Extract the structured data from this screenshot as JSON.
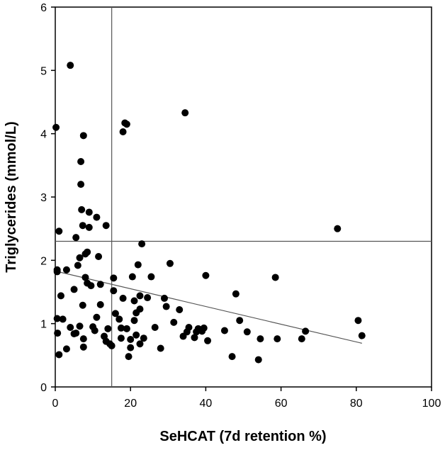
{
  "chart_data": {
    "type": "scatter",
    "title": "",
    "xlabel": "SeHCAT (7d retention %)",
    "ylabel": "Triglycerides (mmol/L)",
    "xlim": [
      0,
      100
    ],
    "ylim": [
      0,
      6
    ],
    "x_ticks": [
      0,
      20,
      40,
      60,
      80,
      100
    ],
    "y_ticks": [
      0,
      1,
      2,
      3,
      4,
      5,
      6
    ],
    "grid": false,
    "colors": {
      "points": "#000000",
      "lines": "#555555",
      "axes": "#000000"
    },
    "reference_lines": [
      {
        "orientation": "vertical",
        "x": 15
      },
      {
        "orientation": "horizontal",
        "y": 2.3
      }
    ],
    "trend_line": {
      "x": [
        0,
        81.5
      ],
      "y": [
        1.83,
        0.69
      ]
    },
    "points": [
      [
        0.2,
        4.1
      ],
      [
        4,
        5.08
      ],
      [
        0.5,
        1.85
      ],
      [
        0.5,
        1.82
      ],
      [
        1,
        2.46
      ],
      [
        0.5,
        1.08
      ],
      [
        0.6,
        0.85
      ],
      [
        1,
        0.51
      ],
      [
        2,
        1.07
      ],
      [
        3,
        1.85
      ],
      [
        1.5,
        1.44
      ],
      [
        3,
        0.6
      ],
      [
        4,
        0.94
      ],
      [
        5,
        0.84
      ],
      [
        5.5,
        0.85
      ],
      [
        5,
        1.54
      ],
      [
        5.5,
        2.36
      ],
      [
        6,
        1.92
      ],
      [
        6.5,
        2.04
      ],
      [
        6.8,
        3.56
      ],
      [
        6.8,
        3.2
      ],
      [
        7,
        2.8
      ],
      [
        7.5,
        3.97
      ],
      [
        7.3,
        2.55
      ],
      [
        8,
        2.1
      ],
      [
        8.5,
        2.13
      ],
      [
        8,
        1.73
      ],
      [
        8.5,
        1.64
      ],
      [
        9,
        2.76
      ],
      [
        9,
        2.52
      ],
      [
        9.5,
        1.6
      ],
      [
        7.3,
        1.29
      ],
      [
        6.5,
        0.96
      ],
      [
        7.5,
        0.76
      ],
      [
        7.5,
        0.63
      ],
      [
        10,
        0.95
      ],
      [
        10.5,
        0.89
      ],
      [
        11,
        1.1
      ],
      [
        11,
        2.68
      ],
      [
        11.5,
        2.06
      ],
      [
        12,
        1.62
      ],
      [
        12,
        1.3
      ],
      [
        13,
        0.8
      ],
      [
        13.5,
        2.55
      ],
      [
        13.5,
        0.72
      ],
      [
        14,
        0.92
      ],
      [
        14.5,
        0.68
      ],
      [
        15,
        0.65
      ],
      [
        15.5,
        1.72
      ],
      [
        15.5,
        1.52
      ],
      [
        16,
        1.16
      ],
      [
        17,
        1.07
      ],
      [
        17.5,
        0.93
      ],
      [
        17.5,
        0.77
      ],
      [
        18,
        1.4
      ],
      [
        18,
        4.03
      ],
      [
        18.5,
        4.17
      ],
      [
        19,
        4.15
      ],
      [
        19,
        0.92
      ],
      [
        19.5,
        0.48
      ],
      [
        20,
        0.62
      ],
      [
        20,
        0.75
      ],
      [
        20.5,
        1.74
      ],
      [
        21,
        1.36
      ],
      [
        21,
        1.05
      ],
      [
        21.5,
        1.17
      ],
      [
        21.5,
        0.82
      ],
      [
        22,
        1.93
      ],
      [
        22.5,
        1.44
      ],
      [
        22.5,
        1.23
      ],
      [
        22.5,
        0.68
      ],
      [
        23,
        2.26
      ],
      [
        23.5,
        0.77
      ],
      [
        24.5,
        1.41
      ],
      [
        25.5,
        1.74
      ],
      [
        26.5,
        0.94
      ],
      [
        28,
        0.61
      ],
      [
        29,
        1.4
      ],
      [
        29.5,
        1.27
      ],
      [
        30.5,
        1.95
      ],
      [
        31.5,
        1.02
      ],
      [
        33,
        1.22
      ],
      [
        34,
        0.8
      ],
      [
        34.5,
        4.33
      ],
      [
        35,
        0.87
      ],
      [
        35.5,
        0.94
      ],
      [
        37,
        0.78
      ],
      [
        37.5,
        0.87
      ],
      [
        38,
        0.92
      ],
      [
        39,
        0.88
      ],
      [
        39.5,
        0.93
      ],
      [
        40,
        1.76
      ],
      [
        40.5,
        0.73
      ],
      [
        45,
        0.89
      ],
      [
        47,
        0.48
      ],
      [
        48,
        1.47
      ],
      [
        49,
        1.05
      ],
      [
        51,
        0.87
      ],
      [
        54,
        0.43
      ],
      [
        54.5,
        0.76
      ],
      [
        58.5,
        1.73
      ],
      [
        59,
        0.76
      ],
      [
        65.5,
        0.76
      ],
      [
        66.5,
        0.88
      ],
      [
        75,
        2.5
      ],
      [
        80.5,
        1.05
      ],
      [
        81.5,
        0.81
      ]
    ]
  }
}
